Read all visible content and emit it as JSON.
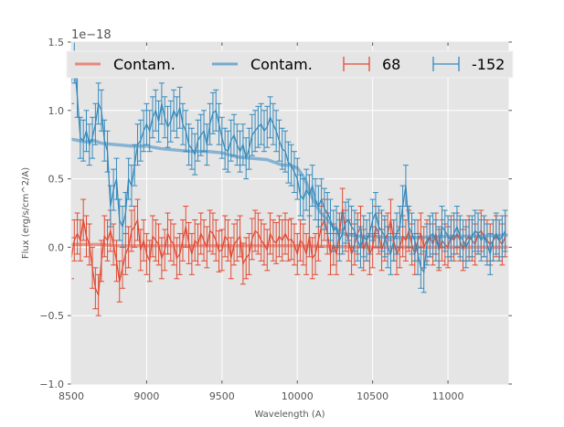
{
  "chart_data": {
    "type": "line",
    "title": "",
    "xlabel": "Wavelength (A)",
    "ylabel": "Flux (erg/s/cm^2/A)",
    "xlim": [
      8500,
      11400
    ],
    "ylim": [
      -1.0,
      1.5
    ],
    "y_offset_text": "1e−18",
    "xticks": [
      8500,
      9000,
      9500,
      10000,
      10500,
      11000
    ],
    "xtick_labels": [
      "8500",
      "9000",
      "9500",
      "10000",
      "10500",
      "11000"
    ],
    "yticks": [
      -1.0,
      -0.5,
      0.0,
      0.5,
      1.0,
      1.5
    ],
    "ytick_labels": [
      "−1.0",
      "−0.5",
      "0.0",
      "0.5",
      "1.0",
      "1.5"
    ],
    "grid": true,
    "legend_position": "top",
    "legend": [
      {
        "label": "Contam.",
        "kind": "line",
        "color": "#E8877A"
      },
      {
        "label": "Contam.",
        "kind": "line",
        "color": "#76AACE"
      },
      {
        "label": "68",
        "kind": "errorbar",
        "color": "#E24A33"
      },
      {
        "label": "-152",
        "kind": "errorbar",
        "color": "#348ABD"
      }
    ],
    "colors": {
      "background": "#E5E5E5",
      "grid": "#FFFFFF",
      "red": "#E24A33",
      "blue": "#348ABD",
      "red_contam": "#E8877A",
      "blue_contam": "#76AACE"
    },
    "series": [
      {
        "name": "Contam. (68)",
        "type": "line",
        "color": "#E8877A",
        "x": [
          8500,
          8600,
          8700,
          8800,
          8900,
          9000,
          9500,
          10000,
          10500,
          11000,
          11400
        ],
        "y": [
          0.02,
          0.02,
          0.02,
          0.01,
          0.01,
          0.01,
          0.01,
          0.01,
          0.0,
          0.0,
          0.0
        ]
      },
      {
        "name": "Contam. (-152)",
        "type": "line",
        "color": "#76AACE",
        "x": [
          8500,
          8600,
          8650,
          8700,
          8800,
          8900,
          9000,
          9100,
          9200,
          9300,
          9400,
          9500,
          9600,
          9700,
          9800,
          9900,
          9950,
          10000,
          10050,
          10100,
          10150,
          10200,
          10250,
          10300,
          10400,
          10500,
          10600,
          10800,
          11000,
          11200,
          11400
        ],
        "y": [
          0.79,
          0.77,
          0.78,
          0.76,
          0.75,
          0.74,
          0.74,
          0.72,
          0.71,
          0.7,
          0.7,
          0.69,
          0.66,
          0.65,
          0.64,
          0.6,
          0.6,
          0.58,
          0.5,
          0.36,
          0.26,
          0.2,
          0.14,
          0.1,
          0.08,
          0.08,
          0.07,
          0.07,
          0.08,
          0.08,
          0.09
        ]
      },
      {
        "name": "68",
        "type": "errorbar",
        "color": "#E24A33",
        "x": [
          8500,
          8520,
          8540,
          8560,
          8580,
          8600,
          8620,
          8640,
          8660,
          8680,
          8700,
          8720,
          8740,
          8760,
          8780,
          8800,
          8820,
          8840,
          8860,
          8880,
          8900,
          8920,
          8940,
          8960,
          8980,
          9000,
          9020,
          9040,
          9060,
          9080,
          9100,
          9120,
          9140,
          9160,
          9180,
          9200,
          9220,
          9240,
          9260,
          9280,
          9300,
          9320,
          9340,
          9360,
          9380,
          9400,
          9420,
          9440,
          9460,
          9480,
          9500,
          9520,
          9540,
          9560,
          9580,
          9600,
          9620,
          9640,
          9660,
          9680,
          9700,
          9720,
          9740,
          9760,
          9780,
          9800,
          9820,
          9840,
          9860,
          9880,
          9900,
          9920,
          9940,
          9960,
          9980,
          10000,
          10020,
          10040,
          10060,
          10080,
          10100,
          10120,
          10140,
          10160,
          10180,
          10200,
          10220,
          10240,
          10260,
          10280,
          10300,
          10320,
          10340,
          10360,
          10380,
          10400,
          10420,
          10440,
          10460,
          10480,
          10500,
          10520,
          10540,
          10560,
          10580,
          10600,
          10620,
          10640,
          10660,
          10680,
          10700,
          10720,
          10740,
          10760,
          10780,
          10800,
          10820,
          10840,
          10860,
          10880,
          10900,
          10920,
          10940,
          10960,
          10980,
          11000,
          11020,
          11040,
          11060,
          11080,
          11100,
          11120,
          11140,
          11160,
          11180,
          11200,
          11220,
          11240,
          11260,
          11280,
          11300,
          11320,
          11340,
          11360,
          11380
        ],
        "y": [
          -0.08,
          0.05,
          0.1,
          0.05,
          0.2,
          0.08,
          0.02,
          -0.15,
          -0.3,
          -0.35,
          -0.1,
          0.08,
          0.05,
          0.12,
          0.02,
          -0.1,
          -0.25,
          -0.15,
          -0.05,
          0.0,
          0.12,
          0.15,
          0.2,
          -0.02,
          0.05,
          -0.05,
          -0.1,
          0.08,
          0.05,
          0.02,
          -0.08,
          -0.02,
          0.1,
          0.05,
          0.02,
          -0.08,
          -0.05,
          0.05,
          0.15,
          0.03,
          -0.05,
          0.05,
          0.02,
          0.1,
          0.05,
          0.0,
          0.12,
          0.1,
          0.05,
          -0.03,
          -0.02,
          0.08,
          0.05,
          -0.08,
          0.02,
          0.05,
          0.08,
          -0.12,
          -0.08,
          -0.05,
          0.06,
          0.12,
          0.1,
          0.05,
          0.02,
          -0.02,
          0.1,
          0.05,
          0.03,
          0.08,
          0.05,
          0.1,
          0.05,
          0.06,
          0.02,
          -0.05,
          0.05,
          0.02,
          -0.05,
          0.08,
          -0.08,
          -0.05,
          0.05,
          0.15,
          0.2,
          0.1,
          -0.05,
          0.02,
          -0.05,
          0.1,
          0.28,
          0.12,
          0.05,
          -0.05,
          0.02,
          0.1,
          0.15,
          -0.02,
          0.05,
          -0.05,
          0.0,
          0.15,
          0.1,
          -0.02,
          0.05,
          0.1,
          0.2,
          0.05,
          -0.05,
          0.0,
          0.08,
          0.05,
          0.12,
          0.02,
          -0.05,
          0.05,
          0.1,
          0.0,
          0.05,
          0.08,
          0.02,
          0.1,
          -0.02,
          0.05,
          0.02,
          0.0,
          0.08,
          0.05,
          0.1,
          0.05,
          -0.02,
          0.05,
          0.08,
          0.05,
          0.02,
          0.1,
          0.12,
          0.08,
          0.05,
          0.02,
          0.05,
          0.08,
          0.05,
          0.02,
          0.08
        ],
        "yerr": 0.15
      },
      {
        "name": "-152",
        "type": "errorbar",
        "color": "#348ABD",
        "x": [
          8500,
          8520,
          8540,
          8560,
          8580,
          8600,
          8620,
          8640,
          8660,
          8680,
          8700,
          8720,
          8740,
          8760,
          8780,
          8800,
          8820,
          8840,
          8860,
          8880,
          8900,
          8920,
          8940,
          8960,
          8980,
          9000,
          9020,
          9040,
          9060,
          9080,
          9100,
          9120,
          9140,
          9160,
          9180,
          9200,
          9220,
          9240,
          9260,
          9280,
          9300,
          9320,
          9340,
          9360,
          9380,
          9400,
          9420,
          9440,
          9460,
          9480,
          9500,
          9520,
          9540,
          9560,
          9580,
          9600,
          9620,
          9640,
          9660,
          9680,
          9700,
          9720,
          9740,
          9760,
          9780,
          9800,
          9820,
          9840,
          9860,
          9880,
          9900,
          9920,
          9940,
          9960,
          9980,
          10000,
          10020,
          10040,
          10060,
          10080,
          10100,
          10120,
          10140,
          10160,
          10180,
          10200,
          10220,
          10240,
          10260,
          10280,
          10300,
          10320,
          10340,
          10360,
          10380,
          10400,
          10420,
          10440,
          10460,
          10480,
          10500,
          10520,
          10540,
          10560,
          10580,
          10600,
          10620,
          10640,
          10660,
          10680,
          10700,
          10720,
          10740,
          10760,
          10780,
          10800,
          10820,
          10840,
          10860,
          10880,
          10900,
          10920,
          10940,
          10960,
          10980,
          11000,
          11020,
          11040,
          11060,
          11080,
          11100,
          11120,
          11140,
          11160,
          11180,
          11200,
          11220,
          11240,
          11260,
          11280,
          11300,
          11320,
          11340,
          11360,
          11380
        ],
        "y": [
          1.2,
          1.35,
          1.1,
          0.8,
          0.78,
          0.85,
          0.75,
          0.8,
          0.9,
          1.05,
          1.0,
          0.78,
          0.7,
          0.3,
          0.42,
          0.5,
          0.2,
          0.15,
          0.25,
          0.5,
          0.45,
          0.6,
          0.75,
          0.78,
          0.85,
          0.9,
          0.85,
          0.95,
          1.0,
          0.92,
          1.05,
          0.95,
          0.88,
          0.92,
          1.0,
          0.95,
          1.02,
          0.9,
          0.85,
          0.75,
          0.72,
          0.68,
          0.78,
          0.82,
          0.85,
          0.75,
          0.9,
          0.98,
          1.0,
          0.9,
          0.8,
          0.72,
          0.7,
          0.78,
          0.82,
          0.75,
          0.7,
          0.75,
          0.65,
          0.72,
          0.82,
          0.85,
          0.88,
          0.9,
          0.85,
          0.88,
          0.95,
          0.9,
          0.85,
          0.78,
          0.72,
          0.7,
          0.62,
          0.6,
          0.55,
          0.5,
          0.38,
          0.35,
          0.42,
          0.38,
          0.45,
          0.35,
          0.3,
          0.35,
          0.28,
          0.25,
          0.2,
          0.12,
          0.15,
          0.05,
          0.1,
          0.18,
          0.2,
          0.15,
          0.12,
          0.05,
          0.0,
          0.08,
          0.05,
          0.1,
          0.2,
          0.25,
          0.15,
          0.12,
          0.08,
          0.0,
          -0.05,
          0.05,
          0.1,
          0.15,
          0.3,
          0.45,
          0.15,
          0.1,
          0.05,
          -0.05,
          -0.15,
          -0.18,
          0.02,
          0.08,
          0.1,
          0.05,
          0.0,
          0.15,
          0.12,
          0.08,
          0.05,
          0.1,
          0.15,
          0.08,
          0.05,
          0.0,
          0.05,
          0.08,
          0.12,
          0.1,
          0.05,
          0.08,
          0.02,
          -0.05,
          0.05,
          0.1,
          0.05,
          0.08,
          0.12
        ],
        "yerr": 0.15
      }
    ]
  }
}
